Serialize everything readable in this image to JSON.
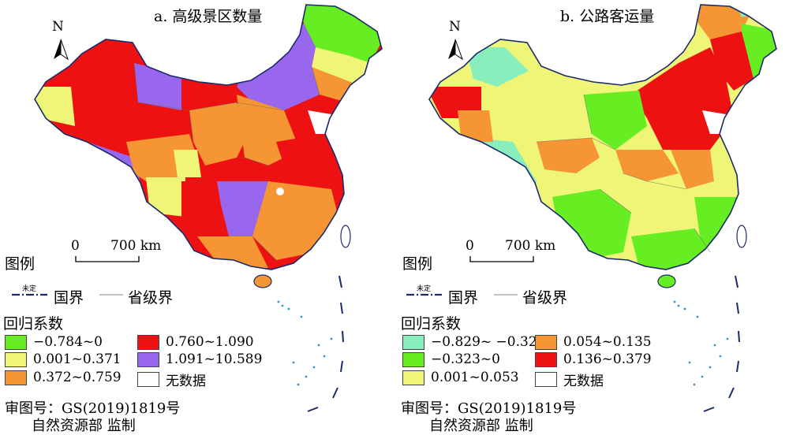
{
  "panels": [
    {
      "title": "a. 高级景区数量",
      "north": "N",
      "scale": {
        "zero": "0",
        "dist": "700 km"
      },
      "legend": {
        "title": "图例",
        "boundaries": [
          {
            "label": "国界",
            "annotation": "未定"
          },
          {
            "label": "省级界"
          }
        ],
        "coef_title": "回归系数",
        "classes": [
          {
            "label": "−0.784~0",
            "color": "#66ee22"
          },
          {
            "label": "0.001~0.371",
            "color": "#eef577"
          },
          {
            "label": "0.372~0.759",
            "color": "#f59533"
          },
          {
            "label": "0.760~1.090",
            "color": "#ee1111"
          },
          {
            "label": "1.091~10.589",
            "color": "#9966ee"
          },
          {
            "label": "无数据",
            "color": "#ffffff"
          }
        ]
      },
      "footer": [
        "审图号：GS(2019)1819号",
        "自然资源部 监制"
      ]
    },
    {
      "title": "b. 公路客运量",
      "north": "N",
      "scale": {
        "zero": "0",
        "dist": "700 km"
      },
      "legend": {
        "title": "图例",
        "boundaries": [
          {
            "label": "国界",
            "annotation": "未定"
          },
          {
            "label": "省级界"
          }
        ],
        "coef_title": "回归系数",
        "classes": [
          {
            "label": "−0.829~ −0.324",
            "color": "#88eebb"
          },
          {
            "label": "0.054~0.135",
            "color": "#f59533"
          },
          {
            "label": "−0.323~0",
            "color": "#66ee22"
          },
          {
            "label": "0.136~0.379",
            "color": "#ee1111"
          },
          {
            "label": "0.001~0.053",
            "color": "#eef577"
          },
          {
            "label": "无数据",
            "color": "#ffffff"
          }
        ]
      },
      "footer": [
        "审图号：GS(2019)1819号",
        "自然资源部 监制"
      ]
    }
  ]
}
